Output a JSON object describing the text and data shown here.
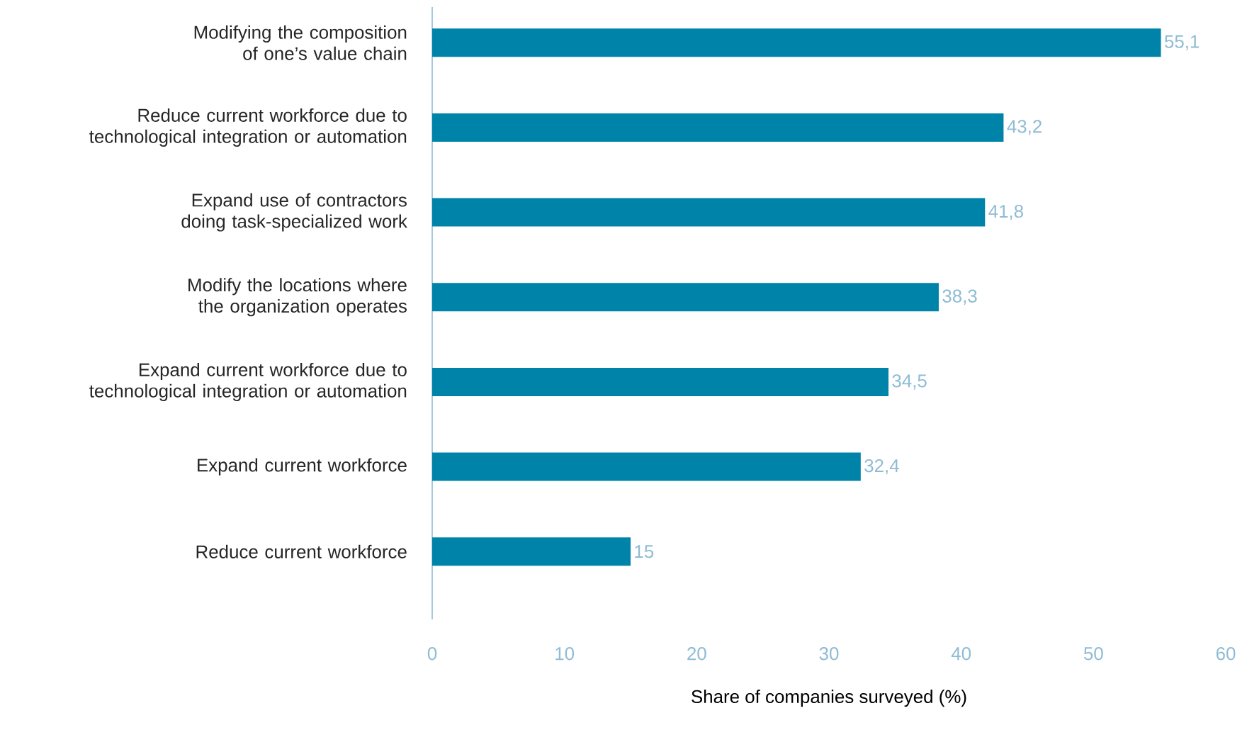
{
  "chart_data": {
    "type": "bar",
    "orientation": "horizontal",
    "xlabel": "Share of companies surveyed (%)",
    "categories": [
      "Modifying the composition of one’s value chain",
      "Reduce current workforce due to technological integration or automation",
      "Expand use of contractors doing task-specialized work",
      "Modify the locations where the organization operates",
      "Expand current workforce due to technological integration or automation",
      "Expand current workforce",
      "Reduce current workforce"
    ],
    "values": [
      55.1,
      43.2,
      41.8,
      38.3,
      34.5,
      32.4,
      15
    ],
    "value_labels": [
      "55,1",
      "43,2",
      "41,8",
      "38,3",
      "34,5",
      "32,4",
      "15"
    ],
    "color": "#0083a8",
    "xlim": [
      0,
      60
    ],
    "xticks": [
      0,
      10,
      20,
      30,
      40,
      50,
      60
    ],
    "grid": false
  }
}
